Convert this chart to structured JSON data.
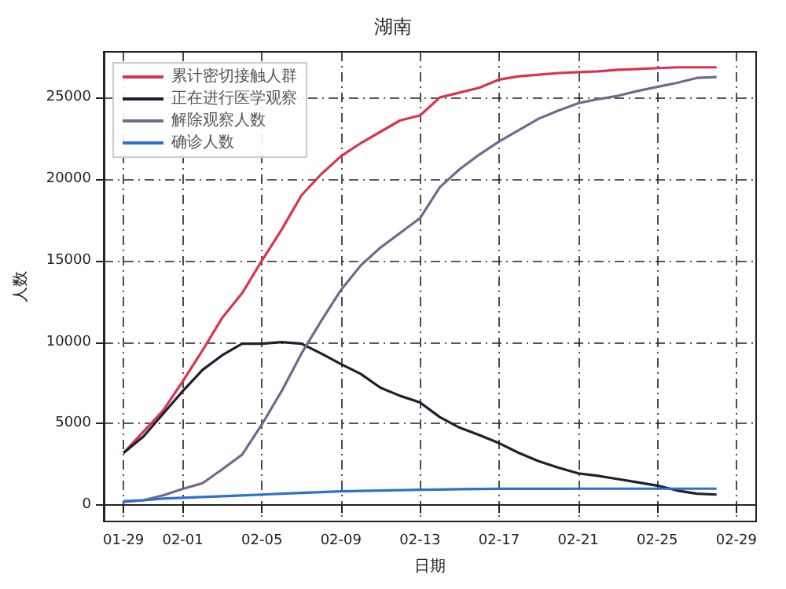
{
  "chart_data": {
    "type": "line",
    "title": "湖南",
    "xlabel": "日期",
    "ylabel": "人数",
    "x": [
      "--01-29",
      "--01-30",
      "--01-31",
      "--02-01",
      "--02-02",
      "--02-03",
      "--02-04",
      "--02-05",
      "--02-06",
      "--02-07",
      "--02-08",
      "--02-09",
      "--02-10",
      "--02-11",
      "--02-12",
      "--02-13",
      "--02-14",
      "--02-15",
      "--02-16",
      "--02-17",
      "--02-18",
      "--02-19",
      "--02-20",
      "--02-21",
      "--02-22",
      "--02-23",
      "--02-24",
      "--02-25",
      "--02-26",
      "--02-27",
      "--02-28"
    ],
    "series": [
      {
        "name": "累计密切接触人群",
        "color": "#d9344f",
        "values": [
          3200,
          4500,
          5800,
          7600,
          9500,
          11500,
          13000,
          15000,
          16900,
          19000,
          20300,
          21400,
          22200,
          22900,
          23600,
          23900,
          25000,
          25300,
          25600,
          26100,
          26300,
          26400,
          26500,
          26550,
          26600,
          26700,
          26750,
          26800,
          26850,
          26850,
          26850
        ]
      },
      {
        "name": "正在进行医学观察",
        "color": "#1f1f2e",
        "values": [
          3200,
          4200,
          5600,
          7000,
          8300,
          9200,
          9900,
          9900,
          10000,
          9900,
          9300,
          8650,
          8050,
          7200,
          6700,
          6300,
          5400,
          4750,
          4300,
          3800,
          3200,
          2700,
          2300,
          1950,
          1800,
          1600,
          1400,
          1200,
          900,
          700,
          650
        ]
      },
      {
        "name": "解除观察人数",
        "color": "#6f6a8e",
        "values": [
          200,
          300,
          600,
          1000,
          1350,
          2200,
          3100,
          4950,
          7000,
          9300,
          11300,
          13200,
          14700,
          15800,
          16700,
          17600,
          19500,
          20600,
          21500,
          22300,
          23000,
          23700,
          24200,
          24650,
          24900,
          25100,
          25400,
          25650,
          25900,
          26200,
          26250
        ]
      },
      {
        "name": "确诊人数",
        "color": "#2f6fd0",
        "values": [
          250,
          300,
          400,
          450,
          500,
          550,
          600,
          650,
          700,
          750,
          800,
          850,
          870,
          900,
          920,
          940,
          960,
          980,
          990,
          1000,
          1000,
          1005,
          1005,
          1010,
          1010,
          1010,
          1010,
          1010,
          1010,
          1010,
          1010
        ]
      }
    ],
    "xlim": [
      "--01-28",
      "--03-01"
    ],
    "xticks": [
      {
        "value": "--01-29",
        "label": "01-29"
      },
      {
        "value": "--02-01",
        "label": "02-01"
      },
      {
        "value": "--02-05",
        "label": "02-05"
      },
      {
        "value": "--02-09",
        "label": "02-09"
      },
      {
        "value": "--02-13",
        "label": "02-13"
      },
      {
        "value": "--02-17",
        "label": "02-17"
      },
      {
        "value": "--02-21",
        "label": "02-21"
      },
      {
        "value": "--02-25",
        "label": "02-25"
      },
      {
        "value": "--02-29",
        "label": "02-29"
      }
    ],
    "ylim": [
      -1000,
      27800
    ],
    "yticks": [
      0,
      5000,
      10000,
      15000,
      20000,
      25000
    ],
    "grid": true,
    "legend": "top left",
    "marker": "none",
    "line_style": "solid"
  }
}
